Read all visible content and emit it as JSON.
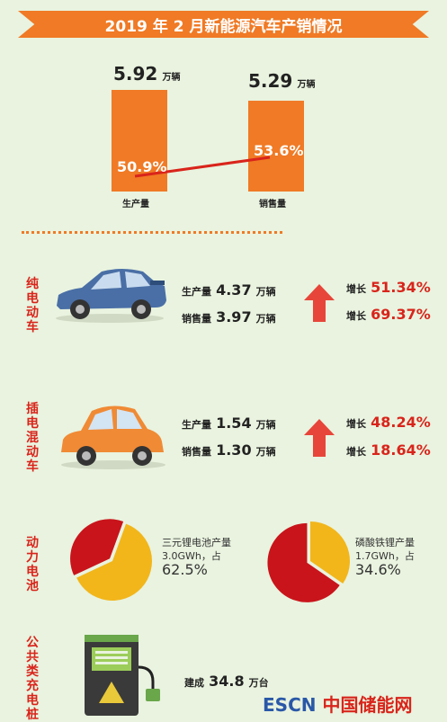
{
  "title": "2019 年 2 月新能源汽车产销情况",
  "production": {
    "value": "5.92",
    "unit": "万辆",
    "label": "生产量",
    "share": "50.9%"
  },
  "sales": {
    "value": "5.29",
    "unit": "万辆",
    "label": "销售量",
    "share": "53.6%"
  },
  "chart_data": [
    {
      "type": "bar",
      "categories": [
        "生产量",
        "销售量"
      ],
      "values": [
        5.92,
        5.29
      ],
      "data_labels": [
        "50.9%",
        "53.6%"
      ]
    },
    {
      "type": "pie",
      "labels": [
        "三元锂电池"
      ],
      "values": [
        62.5
      ]
    },
    {
      "type": "pie",
      "labels": [
        "磷酸铁锂"
      ],
      "values": [
        34.6
      ]
    }
  ],
  "pure_ev": {
    "label": "纯电动车",
    "production_label": "生产量",
    "production": "4.37",
    "production_unit": "万辆",
    "sales_label": "销售量",
    "sales": "3.97",
    "sales_unit": "万辆",
    "growth_label_1": "增长",
    "growth_1": "51.34%",
    "growth_label_2": "增长",
    "growth_2": "69.37%",
    "car_color": "#4a6fa6"
  },
  "phev": {
    "label": "插电混动车",
    "production_label": "生产量",
    "production": "1.54",
    "production_unit": "万辆",
    "sales_label": "销售量",
    "sales": "1.30",
    "sales_unit": "万辆",
    "growth_label_1": "增长",
    "growth_1": "48.24%",
    "growth_label_2": "增长",
    "growth_2": "18.64%",
    "car_color": "#f08a35"
  },
  "battery": {
    "label": "动力电池",
    "ternary_text_1": "三元锂电池产量",
    "ternary_text_2": "3.0GWh，占",
    "ternary_pct": "62.5%",
    "lfp_text_1": "磷酸铁锂产量",
    "lfp_text_2": "1.7GWh，占",
    "lfp_pct": "34.6%",
    "pie_main_color": "#f2b61b",
    "pie_other_color": "#c9141b"
  },
  "charging": {
    "label": "公共类充电桩",
    "built_label": "建成",
    "built_value": "34.8",
    "built_unit": "万台"
  },
  "logo": {
    "escn": "ESCN",
    "cn": "中国储能网"
  },
  "colors": {
    "accent": "#f07a25",
    "red": "#d9241b",
    "background": "#e9f3df"
  }
}
